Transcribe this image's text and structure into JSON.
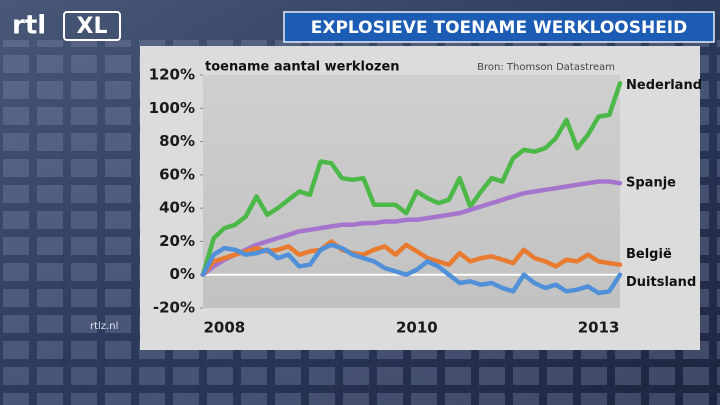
{
  "branding": {
    "logo_rtl": "rtl",
    "logo_xl": "XL",
    "watermark": "rtlz.nl"
  },
  "chart_data": {
    "type": "line",
    "title": "EXPLOSIEVE TOENAME WERKLOOSHEID",
    "subtitle": "toename aantal werklozen",
    "source": "Bron: Thomson Datastream",
    "categories": [
      null,
      null,
      "2008",
      null,
      null,
      null,
      null,
      null,
      null,
      null,
      null,
      null,
      null,
      null,
      null,
      null,
      null,
      null,
      null,
      null,
      "2010",
      null,
      null,
      null,
      null,
      null,
      null,
      null,
      null,
      null,
      null,
      null,
      null,
      null,
      null,
      null,
      null,
      "2013",
      null,
      null
    ],
    "series": [
      {
        "name": "Nederland",
        "color": "#4cb848",
        "values": [
          0,
          22,
          28,
          30,
          35,
          47,
          36,
          40,
          45,
          50,
          48,
          68,
          67,
          58,
          57,
          58,
          42,
          42,
          42,
          37,
          50,
          46,
          43,
          45,
          58,
          41,
          50,
          58,
          56,
          70,
          75,
          74,
          76,
          82,
          93,
          76,
          84,
          95,
          96,
          115
        ]
      },
      {
        "name": "Spanje",
        "color": "#a574cc",
        "values": [
          0,
          5,
          9,
          12,
          15,
          18,
          20,
          22,
          24,
          26,
          27,
          28,
          29,
          30,
          30,
          31,
          31,
          32,
          32,
          33,
          33,
          34,
          35,
          36,
          37,
          39,
          41,
          43,
          45,
          47,
          49,
          50,
          51,
          52,
          53,
          54,
          55,
          56,
          56,
          55
        ]
      },
      {
        "name": "België",
        "color": "#e87b30",
        "values": [
          0,
          8,
          10,
          12,
          14,
          16,
          14,
          15,
          17,
          12,
          14,
          15,
          20,
          15,
          13,
          12,
          15,
          17,
          12,
          18,
          14,
          10,
          8,
          6,
          13,
          8,
          10,
          11,
          9,
          7,
          15,
          10,
          8,
          5,
          9,
          8,
          12,
          8,
          7,
          6
        ]
      },
      {
        "name": "Duitsland",
        "color": "#4f90d8",
        "values": [
          0,
          12,
          16,
          15,
          12,
          13,
          15,
          10,
          12,
          5,
          6,
          15,
          18,
          16,
          12,
          10,
          8,
          4,
          2,
          0,
          3,
          8,
          5,
          0,
          -5,
          -4,
          -6,
          -5,
          -8,
          -10,
          0,
          -5,
          -8,
          -6,
          -10,
          -9,
          -7,
          -11,
          -10,
          0
        ]
      }
    ],
    "ylim": [
      -20,
      120
    ],
    "yticks": [
      {
        "value": -20,
        "label": "-20%"
      },
      {
        "value": 0,
        "label": "0%"
      },
      {
        "value": 20,
        "label": "20%"
      },
      {
        "value": 40,
        "label": "40%"
      },
      {
        "value": 60,
        "label": "60%"
      },
      {
        "value": 80,
        "label": "80%"
      },
      {
        "value": 100,
        "label": "100%"
      },
      {
        "value": 120,
        "label": "120%"
      }
    ]
  }
}
